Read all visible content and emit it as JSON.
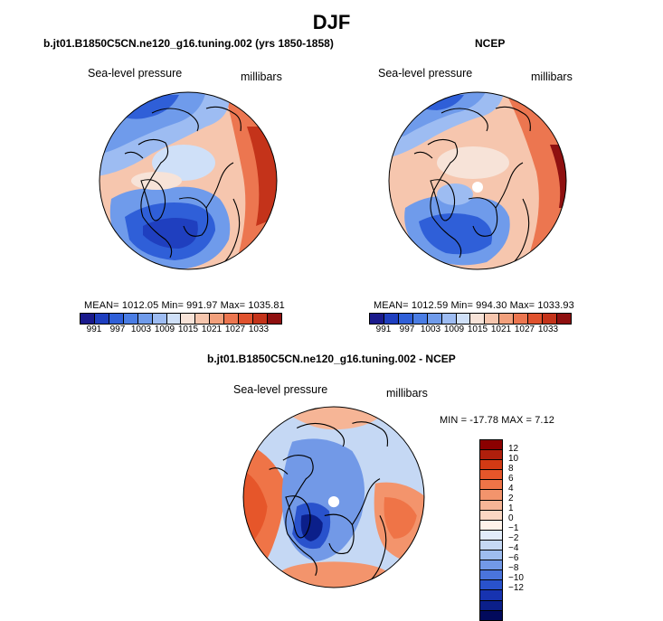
{
  "title": "DJF",
  "panels": {
    "model": {
      "title": "b.jt01.B1850C5CN.ne120_g16.tuning.002 (yrs 1850-1858)",
      "field": "Sea-level pressure",
      "units": "millibars",
      "stats": "MEAN= 1012.05   Min= 991.97   Max= 1035.81"
    },
    "obs": {
      "title": "NCEP",
      "field": "Sea-level pressure",
      "units": "millibars",
      "stats": "MEAN= 1012.59   Min= 994.30   Max= 1033.93"
    },
    "diff": {
      "title": "b.jt01.B1850C5CN.ne120_g16.tuning.002 - NCEP",
      "field": "Sea-level pressure",
      "units": "millibars",
      "stats": "MIN = -17.78  MAX =   7.12"
    }
  },
  "abs_colorbar": {
    "colors": [
      "#1a1a8c",
      "#1f3fbf",
      "#2f5fd8",
      "#4a7de4",
      "#6f9beb",
      "#9dbcf2",
      "#cfe0f8",
      "#f7e3d8",
      "#f6c6ae",
      "#f2a07c",
      "#ec7650",
      "#e0522e",
      "#c4331a",
      "#8f1010"
    ],
    "ticks": [
      "991",
      "997",
      "1003",
      "1009",
      "1015",
      "1021",
      "1027",
      "1033"
    ]
  },
  "diff_colorbar": {
    "colors": [
      "#8b0000",
      "#b01f0c",
      "#d23a14",
      "#e6562a",
      "#ef7447",
      "#f3946c",
      "#f6b596",
      "#fad6c2",
      "#fff3ea",
      "#e2ecfa",
      "#c5d8f4",
      "#9ebdef",
      "#7299e7",
      "#4a74dc",
      "#2952cc",
      "#1733b0",
      "#0b1f8a",
      "#020a5c"
    ],
    "ticks": [
      "12",
      "10",
      "8",
      "6",
      "4",
      "2",
      "1",
      "0",
      "−1",
      "−2",
      "−4",
      "−6",
      "−8",
      "−10",
      "−12"
    ]
  }
}
